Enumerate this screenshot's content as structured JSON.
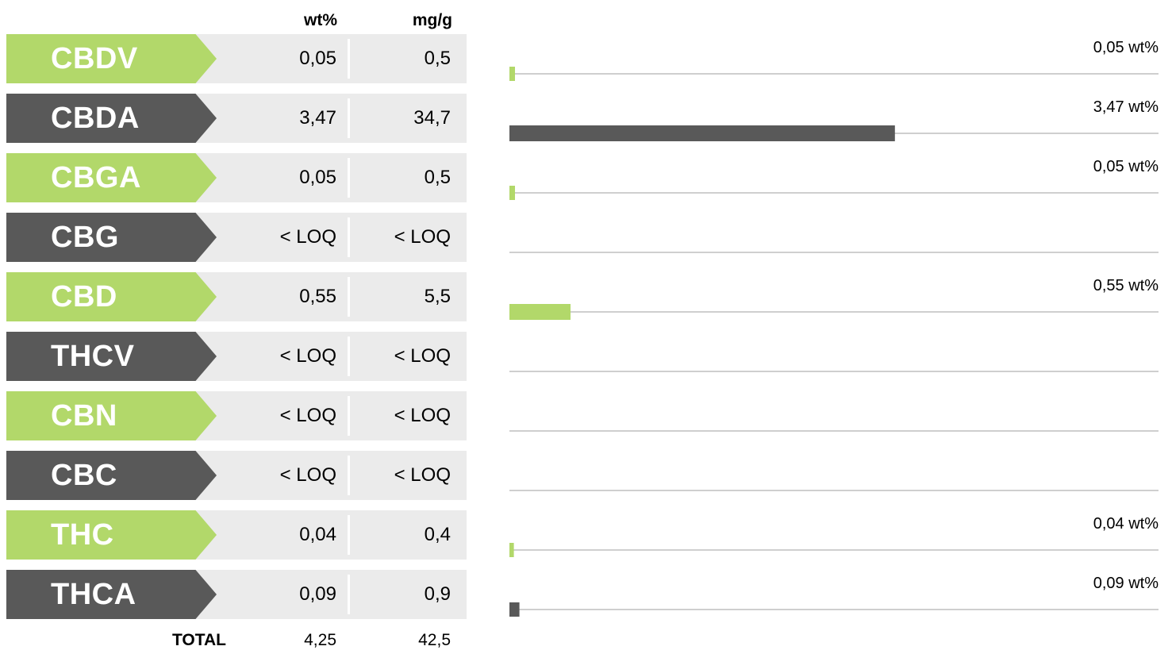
{
  "header": {
    "wt_label": "wt%",
    "mg_label": "mg/g"
  },
  "colors": {
    "green": "#b2d86a",
    "gray": "#595959",
    "row_bg": "#ebebeb",
    "axis_line": "#bfbfbf"
  },
  "rows": [
    {
      "name": "CBDV",
      "wt": "0,05",
      "mg": "0,5",
      "color": "green",
      "annotation": "0,05 wt%"
    },
    {
      "name": "CBDA",
      "wt": "3,47",
      "mg": "34,7",
      "color": "gray",
      "annotation": "3,47 wt%"
    },
    {
      "name": "CBGA",
      "wt": "0,05",
      "mg": "0,5",
      "color": "green",
      "annotation": "0,05 wt%"
    },
    {
      "name": "CBG",
      "wt": "< LOQ",
      "mg": "< LOQ",
      "color": "gray",
      "annotation": ""
    },
    {
      "name": "CBD",
      "wt": "0,55",
      "mg": "5,5",
      "color": "green",
      "annotation": "0,55 wt%"
    },
    {
      "name": "THCV",
      "wt": "< LOQ",
      "mg": "< LOQ",
      "color": "gray",
      "annotation": ""
    },
    {
      "name": "CBN",
      "wt": "< LOQ",
      "mg": "< LOQ",
      "color": "green",
      "annotation": ""
    },
    {
      "name": "CBC",
      "wt": "< LOQ",
      "mg": "< LOQ",
      "color": "gray",
      "annotation": ""
    },
    {
      "name": "THC",
      "wt": "0,04",
      "mg": "0,4",
      "color": "green",
      "annotation": "0,04 wt%"
    },
    {
      "name": "THCA",
      "wt": "0,09",
      "mg": "0,9",
      "color": "gray",
      "annotation": "0,09 wt%"
    }
  ],
  "total": {
    "label": "TOTAL",
    "wt": "4,25",
    "mg": "42,5"
  },
  "chart_data": {
    "type": "bar",
    "orientation": "horizontal",
    "categories": [
      "CBDV",
      "CBDA",
      "CBGA",
      "CBG",
      "CBD",
      "THCV",
      "CBN",
      "CBC",
      "THC",
      "THCA"
    ],
    "values": [
      0.05,
      3.47,
      0.05,
      0,
      0.55,
      0,
      0,
      0,
      0.04,
      0.09
    ],
    "unit": "wt%",
    "xlim": [
      0,
      5
    ],
    "grid": false,
    "legend": "none"
  }
}
